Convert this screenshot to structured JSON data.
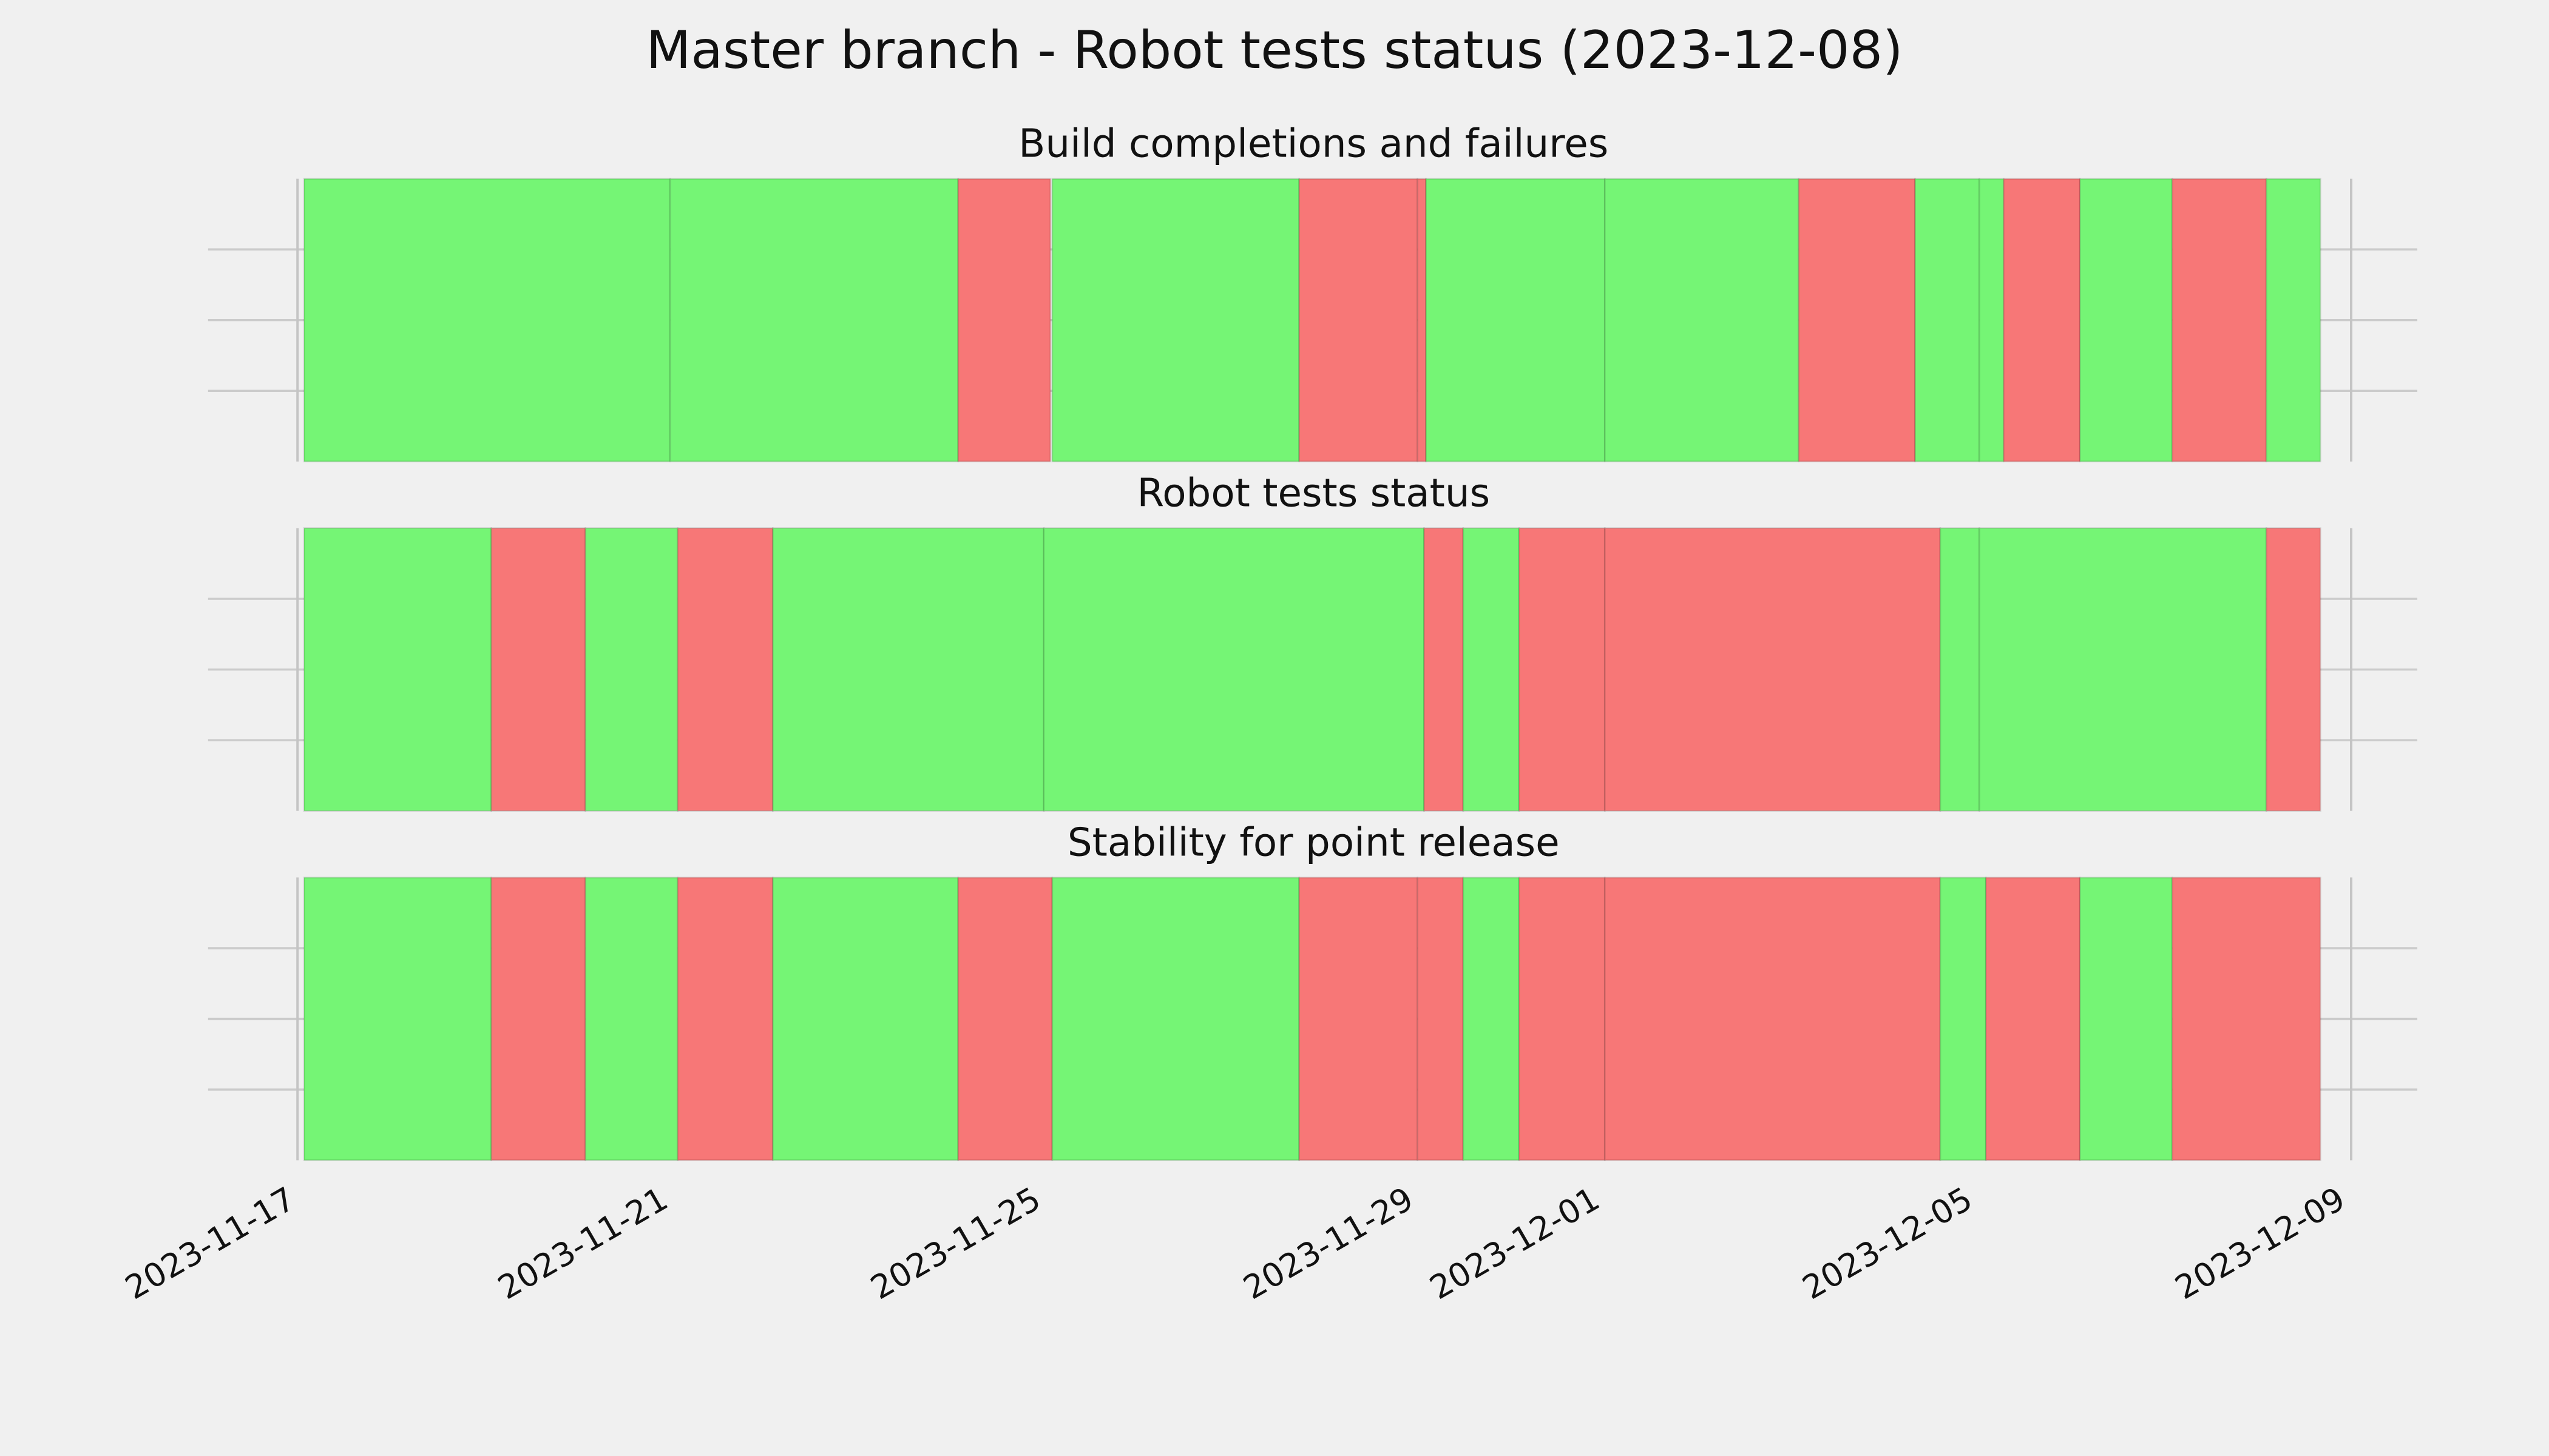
{
  "chart_data": {
    "type": "timeline",
    "title": "Master branch - Robot tests status (2023-12-08)",
    "xlim": [
      -0.96,
      22.75
    ],
    "xticks": [
      {
        "value": 0,
        "label": "2023-11-17"
      },
      {
        "value": 4,
        "label": "2023-11-21"
      },
      {
        "value": 8,
        "label": "2023-11-25"
      },
      {
        "value": 12,
        "label": "2023-11-29"
      },
      {
        "value": 14,
        "label": "2023-12-01"
      },
      {
        "value": 18,
        "label": "2023-12-05"
      },
      {
        "value": 22,
        "label": "2023-12-09"
      }
    ],
    "ylim": [
      0,
      1
    ],
    "yticks": [
      0.25,
      0.5,
      0.75
    ],
    "grid": true,
    "period_lines": [
      0,
      22.04
    ],
    "panels": [
      {
        "title": "Build completions and failures",
        "segments": [
          {
            "start": 0.07,
            "end": 4.0,
            "color": "#75f575"
          },
          {
            "start": 4.0,
            "end": 7.09,
            "color": "#75f575"
          },
          {
            "start": 7.09,
            "end": 8.08,
            "color": "#f77777"
          },
          {
            "start": 8.1,
            "end": 10.75,
            "color": "#75f575"
          },
          {
            "start": 10.75,
            "end": 12.02,
            "color": "#f77777"
          },
          {
            "start": 12.02,
            "end": 12.11,
            "color": "#f77777"
          },
          {
            "start": 12.11,
            "end": 14.03,
            "color": "#75f575"
          },
          {
            "start": 14.03,
            "end": 16.11,
            "color": "#75f575"
          },
          {
            "start": 16.11,
            "end": 17.36,
            "color": "#f77777"
          },
          {
            "start": 17.36,
            "end": 18.05,
            "color": "#75f575"
          },
          {
            "start": 18.05,
            "end": 18.31,
            "color": "#75f575"
          },
          {
            "start": 18.31,
            "end": 19.13,
            "color": "#f77777"
          },
          {
            "start": 19.13,
            "end": 20.12,
            "color": "#75f575"
          },
          {
            "start": 20.12,
            "end": 21.13,
            "color": "#f77777"
          },
          {
            "start": 21.13,
            "end": 21.71,
            "color": "#75f575"
          }
        ]
      },
      {
        "title": "Robot tests status",
        "segments": [
          {
            "start": 0.07,
            "end": 2.08,
            "color": "#75f575"
          },
          {
            "start": 2.08,
            "end": 3.09,
            "color": "#f77777"
          },
          {
            "start": 3.09,
            "end": 4.08,
            "color": "#75f575"
          },
          {
            "start": 4.08,
            "end": 5.1,
            "color": "#f77777"
          },
          {
            "start": 5.1,
            "end": 8.01,
            "color": "#75f575"
          },
          {
            "start": 8.01,
            "end": 12.09,
            "color": "#75f575"
          },
          {
            "start": 12.09,
            "end": 12.51,
            "color": "#f77777"
          },
          {
            "start": 12.51,
            "end": 13.11,
            "color": "#75f575"
          },
          {
            "start": 13.11,
            "end": 14.03,
            "color": "#f77777"
          },
          {
            "start": 14.03,
            "end": 17.63,
            "color": "#f77777"
          },
          {
            "start": 17.63,
            "end": 18.05,
            "color": "#75f575"
          },
          {
            "start": 18.05,
            "end": 21.13,
            "color": "#75f575"
          },
          {
            "start": 21.13,
            "end": 21.71,
            "color": "#f77777"
          }
        ]
      },
      {
        "title": "Stability for point release",
        "segments": [
          {
            "start": 0.07,
            "end": 2.08,
            "color": "#75f575"
          },
          {
            "start": 2.08,
            "end": 3.09,
            "color": "#f77777"
          },
          {
            "start": 3.09,
            "end": 4.08,
            "color": "#75f575"
          },
          {
            "start": 4.08,
            "end": 5.1,
            "color": "#f77777"
          },
          {
            "start": 5.1,
            "end": 7.09,
            "color": "#75f575"
          },
          {
            "start": 7.09,
            "end": 8.1,
            "color": "#f77777"
          },
          {
            "start": 8.1,
            "end": 10.75,
            "color": "#75f575"
          },
          {
            "start": 10.75,
            "end": 12.02,
            "color": "#f77777"
          },
          {
            "start": 12.02,
            "end": 12.51,
            "color": "#f77777"
          },
          {
            "start": 12.51,
            "end": 13.11,
            "color": "#75f575"
          },
          {
            "start": 13.11,
            "end": 14.03,
            "color": "#f77777"
          },
          {
            "start": 14.03,
            "end": 17.63,
            "color": "#f77777"
          },
          {
            "start": 17.63,
            "end": 18.12,
            "color": "#75f575"
          },
          {
            "start": 18.12,
            "end": 19.13,
            "color": "#f77777"
          },
          {
            "start": 19.13,
            "end": 20.12,
            "color": "#75f575"
          },
          {
            "start": 20.12,
            "end": 21.71,
            "color": "#f77777"
          }
        ]
      }
    ]
  }
}
